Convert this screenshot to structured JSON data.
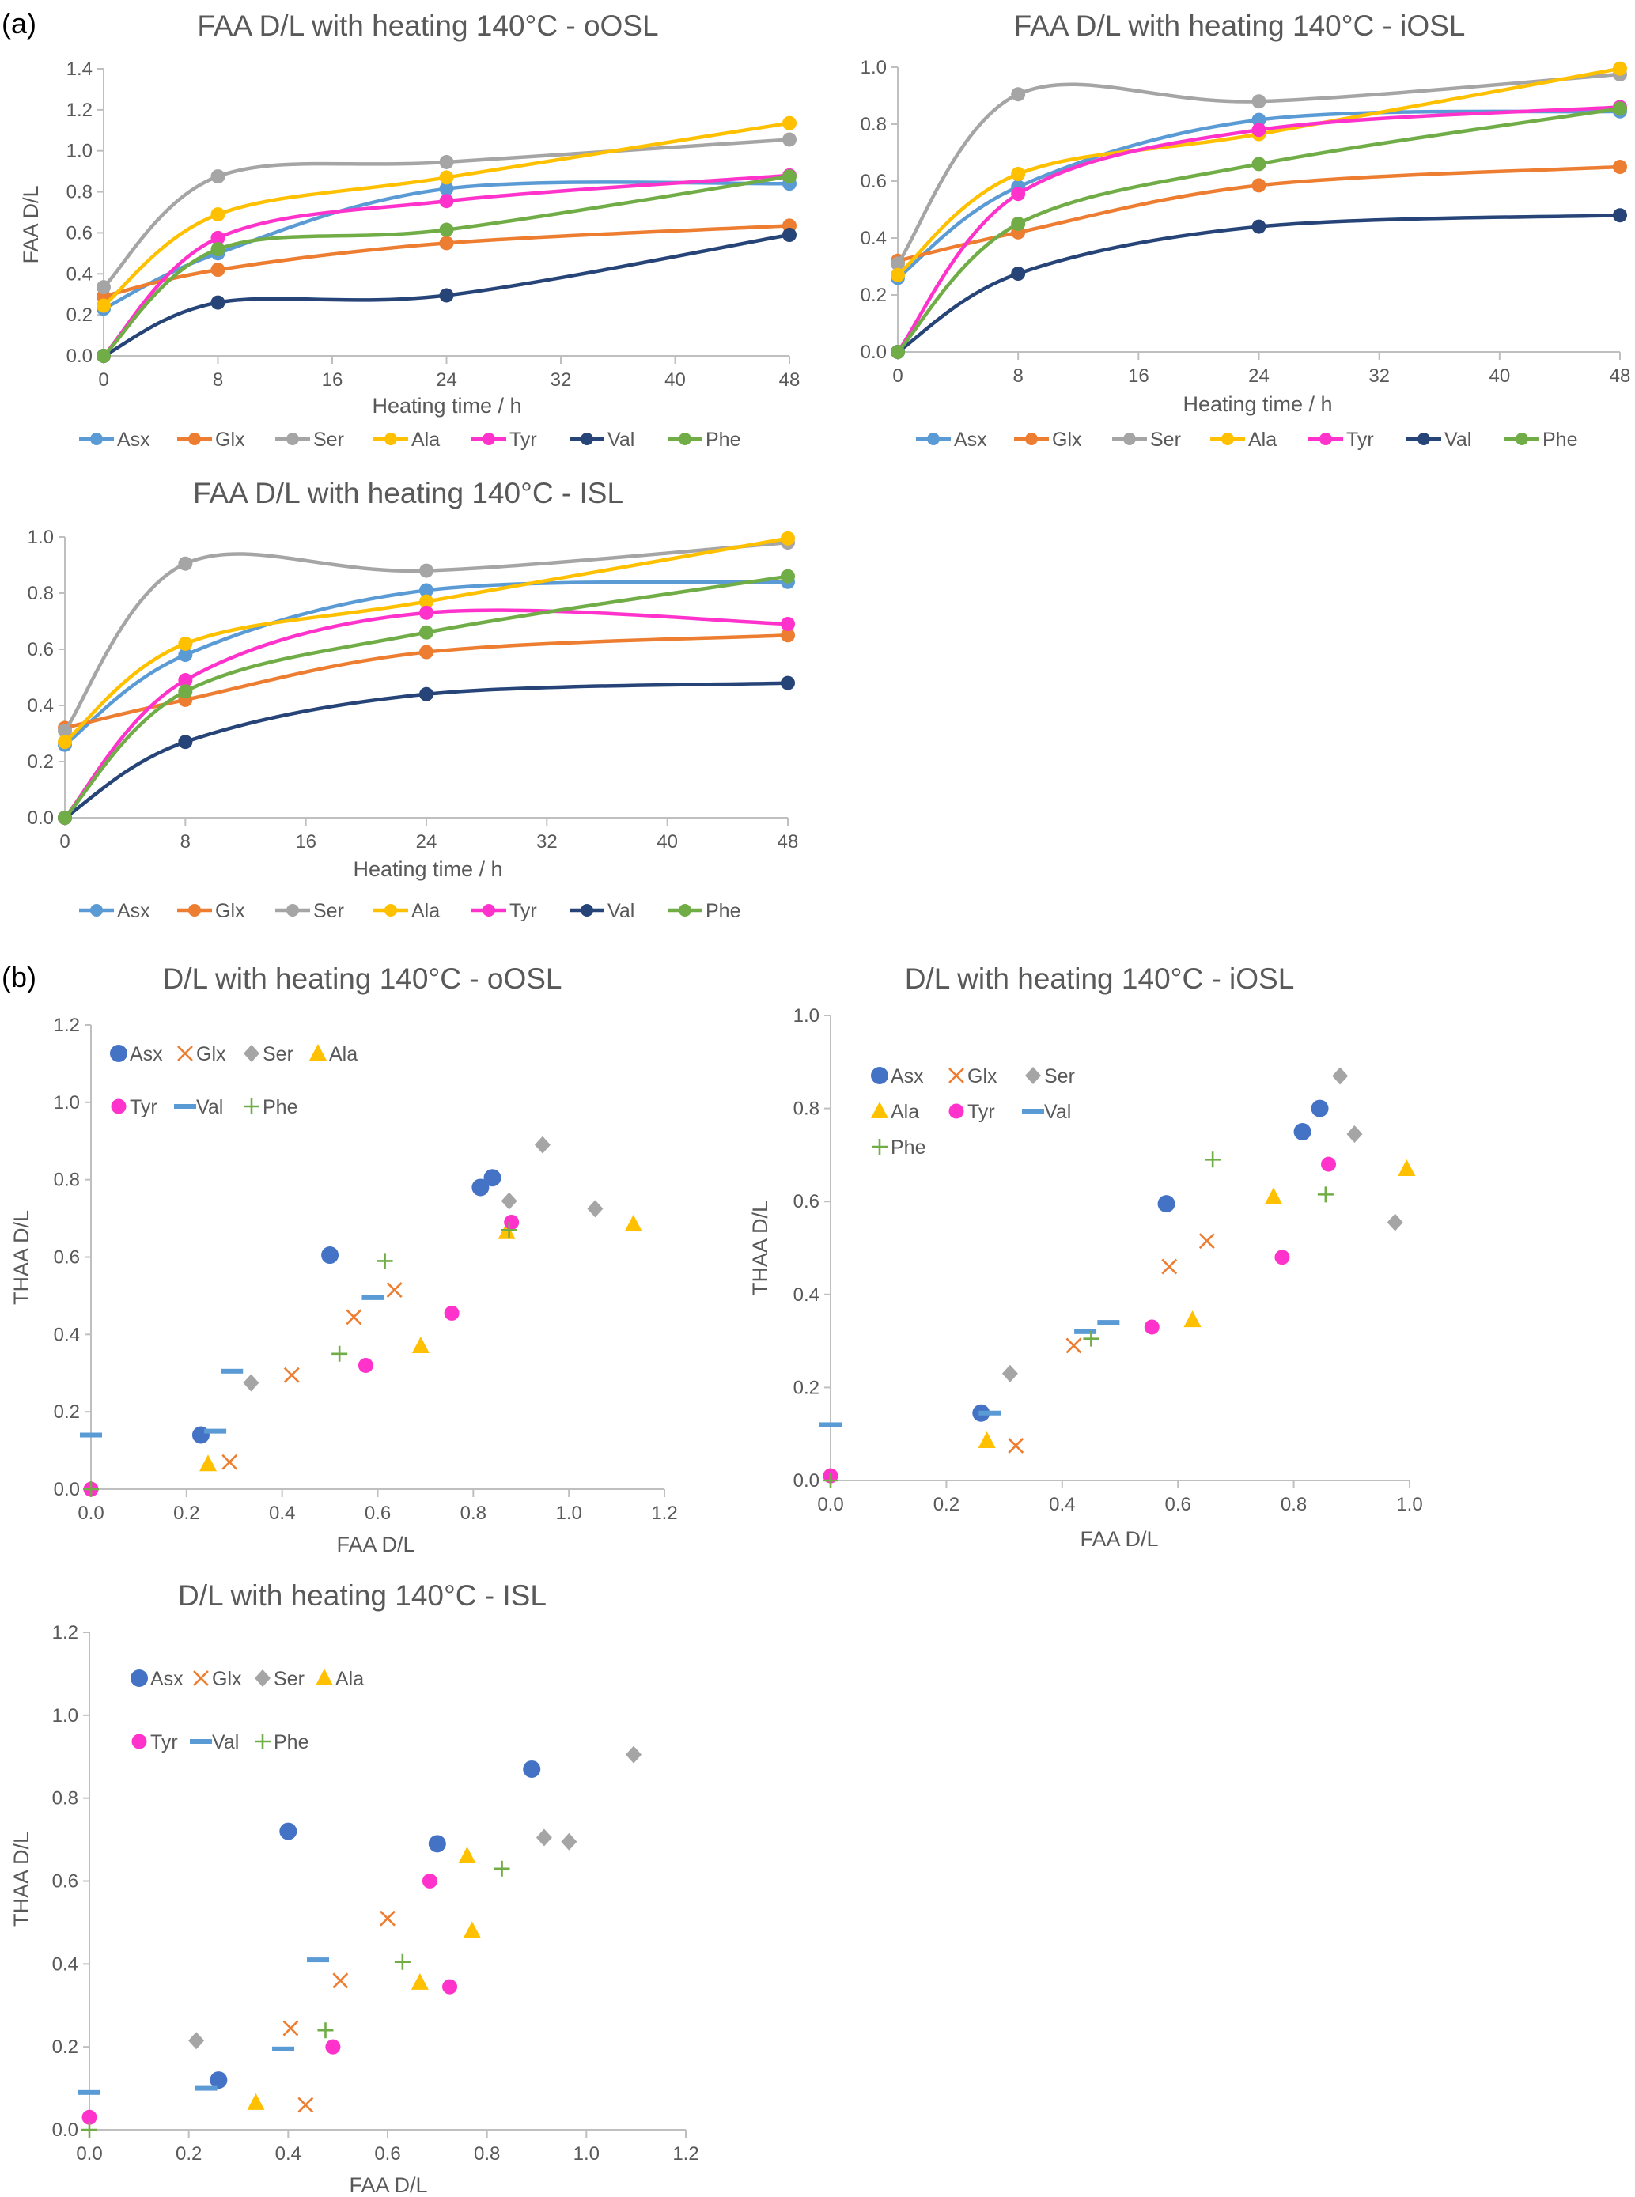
{
  "panels": {
    "a": "(a)",
    "b": "(b)"
  },
  "line_colors": {
    "Asx": "#5B9BD5",
    "Glx": "#ED7D31",
    "Ser": "#A5A5A5",
    "Ala": "#FFC000",
    "Tyr": "#FF33CC",
    "Val": "#264478",
    "Phe": "#70AD47"
  },
  "scatter_colors": {
    "Asx": "#4472C4",
    "Glx": "#ED7D31",
    "Ser": "#A5A5A5",
    "Ala": "#FFC000",
    "Tyr": "#FF33CC",
    "Val": "#5B9BD5",
    "Phe": "#70AD47"
  },
  "chart_data": [
    {
      "type": "line",
      "title": "FAA D/L with heating 140°C - oOSL",
      "xlabel": "Heating time / h",
      "ylabel": "FAA D/L",
      "xlim": [
        0,
        48
      ],
      "ylim": [
        0,
        1.4
      ],
      "grid": false,
      "legend": "bottom",
      "xticks": [
        "0",
        "8",
        "16",
        "24",
        "32",
        "40",
        "48"
      ],
      "yticks": [
        "0.0",
        "0.2",
        "0.4",
        "0.6",
        "0.8",
        "1.0",
        "1.2",
        "1.4"
      ],
      "x": [
        0,
        8,
        24,
        48
      ],
      "series": [
        {
          "name": "Asx",
          "values": [
            0.23,
            0.5,
            0.815,
            0.84
          ]
        },
        {
          "name": "Glx",
          "values": [
            0.29,
            0.42,
            0.55,
            0.635
          ]
        },
        {
          "name": "Ser",
          "values": [
            0.335,
            0.875,
            0.945,
            1.055
          ]
        },
        {
          "name": "Ala",
          "values": [
            0.245,
            0.69,
            0.87,
            1.135
          ]
        },
        {
          "name": "Tyr",
          "values": [
            0,
            0.575,
            0.755,
            0.88
          ]
        },
        {
          "name": "Val",
          "values": [
            0,
            0.26,
            0.295,
            0.59
          ]
        },
        {
          "name": "Phe",
          "values": [
            0,
            0.52,
            0.615,
            0.875
          ]
        }
      ]
    },
    {
      "type": "line",
      "title": "FAA D/L with heating 140°C - iOSL",
      "xlabel": "Heating time / h",
      "ylabel": "",
      "xlim": [
        0,
        48
      ],
      "ylim": [
        0,
        1.0
      ],
      "grid": false,
      "legend": "bottom",
      "xticks": [
        "0",
        "8",
        "16",
        "24",
        "32",
        "40",
        "48"
      ],
      "yticks": [
        "0.0",
        "0.2",
        "0.4",
        "0.6",
        "0.8",
        "1.0"
      ],
      "x": [
        0,
        8,
        24,
        48
      ],
      "series": [
        {
          "name": "Asx",
          "values": [
            0.26,
            0.58,
            0.815,
            0.845
          ]
        },
        {
          "name": "Glx",
          "values": [
            0.32,
            0.42,
            0.585,
            0.65
          ]
        },
        {
          "name": "Ser",
          "values": [
            0.31,
            0.905,
            0.88,
            0.975
          ]
        },
        {
          "name": "Ala",
          "values": [
            0.27,
            0.625,
            0.765,
            0.995
          ]
        },
        {
          "name": "Tyr",
          "values": [
            0,
            0.555,
            0.78,
            0.86
          ]
        },
        {
          "name": "Val",
          "values": [
            0,
            0.275,
            0.44,
            0.48
          ]
        },
        {
          "name": "Phe",
          "values": [
            0,
            0.45,
            0.66,
            0.855
          ]
        }
      ]
    },
    {
      "type": "line",
      "title": "FAA D/L with heating 140°C - ISL",
      "xlabel": "Heating time / h",
      "ylabel": "",
      "xlim": [
        0,
        48
      ],
      "ylim": [
        0,
        1.0
      ],
      "grid": false,
      "legend": "bottom",
      "xticks": [
        "0",
        "8",
        "16",
        "24",
        "32",
        "40",
        "48"
      ],
      "yticks": [
        "0.0",
        "0.2",
        "0.4",
        "0.6",
        "0.8",
        "1.0"
      ],
      "x": [
        0,
        8,
        24,
        48
      ],
      "series": [
        {
          "name": "Asx",
          "values": [
            0.26,
            0.58,
            0.81,
            0.84
          ]
        },
        {
          "name": "Glx",
          "values": [
            0.32,
            0.42,
            0.59,
            0.65
          ]
        },
        {
          "name": "Ser",
          "values": [
            0.31,
            0.905,
            0.88,
            0.98
          ]
        },
        {
          "name": "Ala",
          "values": [
            0.27,
            0.62,
            0.77,
            0.995
          ]
        },
        {
          "name": "Tyr",
          "values": [
            0,
            0.49,
            0.73,
            0.69
          ]
        },
        {
          "name": "Val",
          "values": [
            0,
            0.27,
            0.44,
            0.48
          ]
        },
        {
          "name": "Phe",
          "values": [
            0,
            0.45,
            0.66,
            0.86
          ]
        }
      ]
    },
    {
      "type": "scatter",
      "title": "D/L with heating 140°C - oOSL",
      "xlabel": "FAA D/L",
      "ylabel": "THAA D/L",
      "xlim": [
        0,
        1.2
      ],
      "ylim": [
        0,
        1.2
      ],
      "grid": false,
      "legend": "top-left",
      "xticks": [
        "0.0",
        "0.2",
        "0.4",
        "0.6",
        "0.8",
        "1.0",
        "1.2"
      ],
      "yticks": [
        "0.0",
        "0.2",
        "0.4",
        "0.6",
        "0.8",
        "1.0",
        "1.2"
      ],
      "series": [
        {
          "name": "Asx",
          "marker": "circle",
          "points": [
            [
              0.23,
              0.14
            ],
            [
              0.5,
              0.605
            ],
            [
              0.815,
              0.78
            ],
            [
              0.84,
              0.805
            ]
          ]
        },
        {
          "name": "Glx",
          "marker": "x",
          "points": [
            [
              0.29,
              0.07
            ],
            [
              0.42,
              0.295
            ],
            [
              0.55,
              0.445
            ],
            [
              0.635,
              0.515
            ]
          ]
        },
        {
          "name": "Ser",
          "marker": "diamond",
          "points": [
            [
              0.335,
              0.275
            ],
            [
              0.875,
              0.745
            ],
            [
              0.945,
              0.89
            ],
            [
              1.055,
              0.725
            ]
          ]
        },
        {
          "name": "Ala",
          "marker": "triangle",
          "points": [
            [
              0.245,
              0.065
            ],
            [
              0.69,
              0.37
            ],
            [
              0.87,
              0.665
            ],
            [
              1.135,
              0.685
            ]
          ]
        },
        {
          "name": "Tyr",
          "marker": "dot",
          "points": [
            [
              0,
              0
            ],
            [
              0.575,
              0.32
            ],
            [
              0.755,
              0.455
            ],
            [
              0.88,
              0.69
            ]
          ]
        },
        {
          "name": "Val",
          "marker": "dash",
          "points": [
            [
              0,
              0.14
            ],
            [
              0.26,
              0.15
            ],
            [
              0.295,
              0.305
            ],
            [
              0.59,
              0.495
            ]
          ]
        },
        {
          "name": "Phe",
          "marker": "plus",
          "points": [
            [
              0,
              0
            ],
            [
              0.52,
              0.35
            ],
            [
              0.615,
              0.59
            ],
            [
              0.875,
              0.67
            ]
          ]
        }
      ]
    },
    {
      "type": "scatter",
      "title": "D/L with heating 140°C - iOSL",
      "xlabel": "FAA D/L",
      "ylabel": "THAA D/L",
      "xlim": [
        0,
        1.0
      ],
      "ylim": [
        0,
        1.0
      ],
      "grid": false,
      "legend": "top-left",
      "xticks": [
        "0.0",
        "0.2",
        "0.4",
        "0.6",
        "0.8",
        "1.0"
      ],
      "yticks": [
        "0.0",
        "0.2",
        "0.4",
        "0.6",
        "0.8",
        "1.0"
      ],
      "series": [
        {
          "name": "Asx",
          "marker": "circle",
          "points": [
            [
              0.26,
              0.145
            ],
            [
              0.58,
              0.595
            ],
            [
              0.815,
              0.75
            ],
            [
              0.845,
              0.8
            ]
          ]
        },
        {
          "name": "Glx",
          "marker": "x",
          "points": [
            [
              0.32,
              0.075
            ],
            [
              0.42,
              0.29
            ],
            [
              0.585,
              0.46
            ],
            [
              0.65,
              0.515
            ]
          ]
        },
        {
          "name": "Ser",
          "marker": "diamond",
          "points": [
            [
              0.31,
              0.23
            ],
            [
              0.88,
              0.87
            ],
            [
              0.905,
              0.745
            ],
            [
              0.975,
              0.555
            ]
          ]
        },
        {
          "name": "Ala",
          "marker": "triangle",
          "points": [
            [
              0.27,
              0.085
            ],
            [
              0.625,
              0.345
            ],
            [
              0.765,
              0.61
            ],
            [
              0.995,
              0.67
            ]
          ]
        },
        {
          "name": "Tyr",
          "marker": "dot",
          "points": [
            [
              0,
              0.01
            ],
            [
              0.555,
              0.33
            ],
            [
              0.78,
              0.48
            ],
            [
              0.86,
              0.68
            ]
          ]
        },
        {
          "name": "Val",
          "marker": "dash",
          "points": [
            [
              0,
              0.12
            ],
            [
              0.275,
              0.145
            ],
            [
              0.44,
              0.32
            ],
            [
              0.48,
              0.34
            ]
          ]
        },
        {
          "name": "Phe",
          "marker": "plus",
          "points": [
            [
              0,
              0
            ],
            [
              0.45,
              0.305
            ],
            [
              0.66,
              0.69
            ],
            [
              0.855,
              0.615
            ]
          ]
        }
      ]
    },
    {
      "type": "scatter",
      "title": "D/L with heating 140°C - ISL",
      "xlabel": "FAA D/L",
      "ylabel": "THAA D/L",
      "xlim": [
        0,
        1.2
      ],
      "ylim": [
        0,
        1.2
      ],
      "grid": false,
      "legend": "top-left",
      "xticks": [
        "0.0",
        "0.2",
        "0.4",
        "0.6",
        "0.8",
        "1.0",
        "1.2"
      ],
      "yticks": [
        "0.0",
        "0.2",
        "0.4",
        "0.6",
        "0.8",
        "1.0",
        "1.2"
      ],
      "series": [
        {
          "name": "Asx",
          "marker": "circle",
          "points": [
            [
              0.26,
              0.12
            ],
            [
              0.4,
              0.72
            ],
            [
              0.7,
              0.69
            ],
            [
              0.89,
              0.87
            ]
          ]
        },
        {
          "name": "Glx",
          "marker": "x",
          "points": [
            [
              0.435,
              0.06
            ],
            [
              0.405,
              0.245
            ],
            [
              0.505,
              0.36
            ],
            [
              0.6,
              0.51
            ]
          ]
        },
        {
          "name": "Ser",
          "marker": "diamond",
          "points": [
            [
              0.215,
              0.215
            ],
            [
              0.915,
              0.705
            ],
            [
              0.965,
              0.695
            ],
            [
              1.095,
              0.905
            ]
          ]
        },
        {
          "name": "Ala",
          "marker": "triangle",
          "points": [
            [
              0.335,
              0.065
            ],
            [
              0.665,
              0.355
            ],
            [
              0.76,
              0.66
            ],
            [
              0.77,
              0.48
            ]
          ]
        },
        {
          "name": "Tyr",
          "marker": "dot",
          "points": [
            [
              0,
              0.03
            ],
            [
              0.49,
              0.2
            ],
            [
              0.685,
              0.6
            ],
            [
              0.725,
              0.345
            ]
          ]
        },
        {
          "name": "Val",
          "marker": "dash",
          "points": [
            [
              0,
              0.09
            ],
            [
              0.235,
              0.1
            ],
            [
              0.39,
              0.195
            ],
            [
              0.46,
              0.41
            ]
          ]
        },
        {
          "name": "Phe",
          "marker": "plus",
          "points": [
            [
              0,
              0
            ],
            [
              0.475,
              0.24
            ],
            [
              0.63,
              0.405
            ],
            [
              0.83,
              0.63
            ]
          ]
        }
      ]
    }
  ]
}
